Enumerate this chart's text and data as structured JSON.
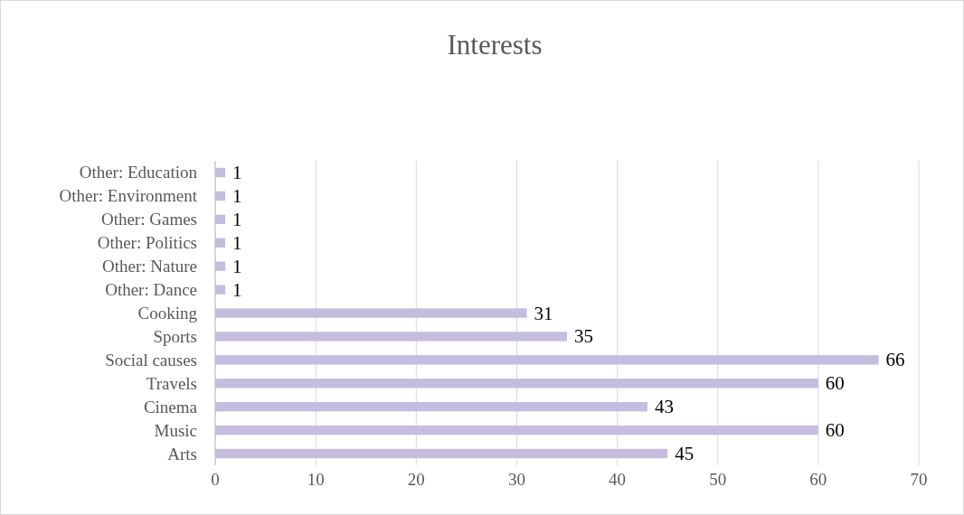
{
  "chart_data": {
    "type": "bar",
    "orientation": "horizontal",
    "title": "Interests",
    "categories": [
      "Other: Education",
      "Other: Environment",
      "Other: Games",
      "Other: Politics",
      "Other: Nature",
      "Other: Dance",
      "Cooking",
      "Sports",
      "Social causes",
      "Travels",
      "Cinema",
      "Music",
      "Arts"
    ],
    "values": [
      1,
      1,
      1,
      1,
      1,
      1,
      31,
      35,
      66,
      60,
      43,
      60,
      45
    ],
    "color": "#c5bde0",
    "xlim": [
      0,
      70
    ],
    "xticks": [
      0,
      10,
      20,
      30,
      40,
      50,
      60,
      70
    ],
    "grid": "x",
    "data_labels": true
  }
}
